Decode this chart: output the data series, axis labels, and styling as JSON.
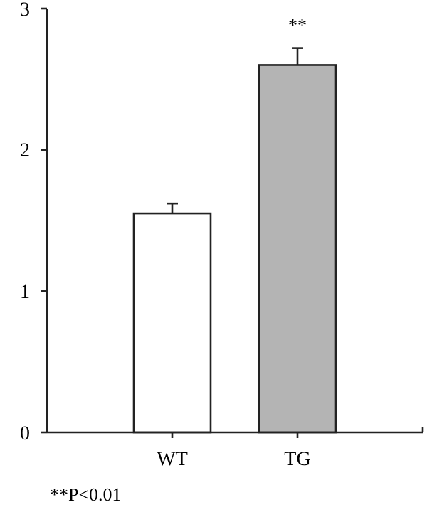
{
  "chart_data": {
    "type": "bar",
    "categories": [
      "WT",
      "TG"
    ],
    "values": [
      1.55,
      2.6
    ],
    "colors": [
      "#ffffff",
      "#b4b4b4"
    ],
    "errors": [
      0.07,
      0.12
    ],
    "ylim": [
      0,
      3
    ],
    "yticks": [
      0,
      1,
      2,
      3
    ],
    "grid": false,
    "annotations": [
      "**",
      "**P<0.01"
    ]
  }
}
